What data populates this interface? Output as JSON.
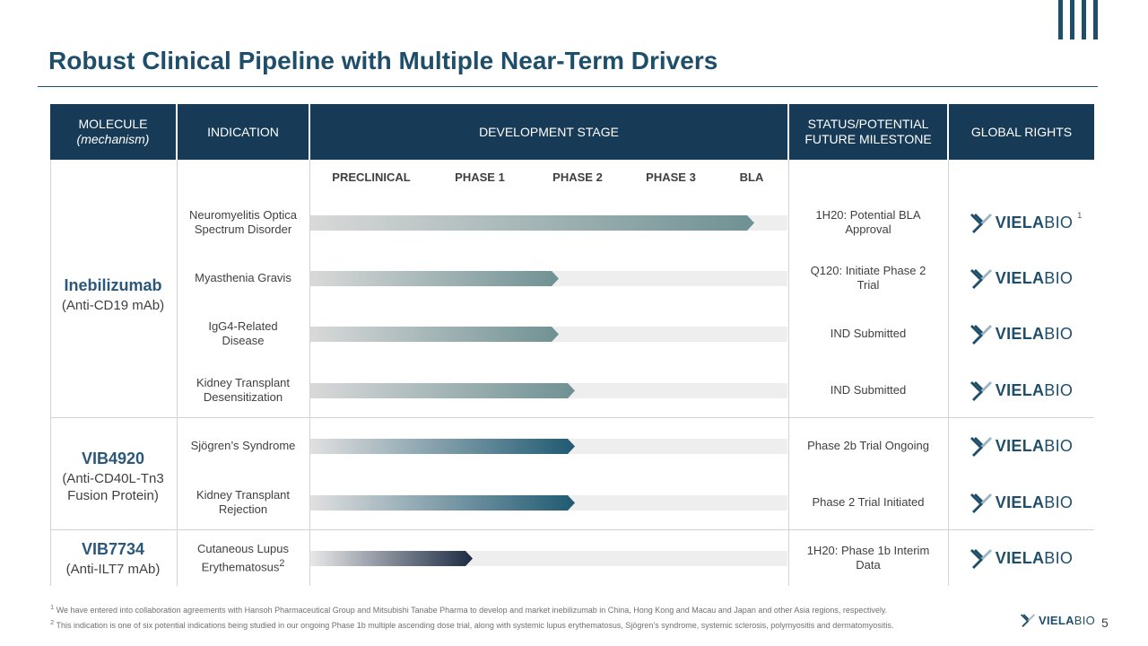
{
  "title": "Robust Clinical Pipeline with Multiple Near-Term Drivers",
  "headers": {
    "molecule": "MOLECULE",
    "mechanism": "(mechanism)",
    "indication": "INDICATION",
    "stage": "DEVELOPMENT STAGE",
    "status_1": "STATUS/POTENTIAL",
    "status_2": "FUTURE MILESTONE",
    "rights": "GLOBAL RIGHTS"
  },
  "stages": [
    "PRECLINICAL",
    "PHASE 1",
    "PHASE 2",
    "PHASE 3",
    "BLA"
  ],
  "molecules": [
    {
      "name": "Inebilizumab",
      "mech": "(Anti-CD19 mAb)"
    },
    {
      "name": "VIB4920",
      "mech_1": "(Anti-CD40L-Tn3",
      "mech_2": "Fusion Protein)"
    },
    {
      "name": "VIB7734",
      "mech": "(Anti-ILT7 mAb)"
    }
  ],
  "rows": [
    {
      "ind_1": "Neuromyelitis Optica",
      "ind_2": "Spectrum Disorder",
      "status_1": "1H20: Potential BLA",
      "status_2": "Approval",
      "progress": 0.93
    },
    {
      "ind_1": "Myasthenia Gravis",
      "ind_2": "",
      "status_1": "Q120: Initiate Phase 2",
      "status_2": "Trial",
      "progress": 0.52
    },
    {
      "ind_1": "IgG4-Related",
      "ind_2": "Disease",
      "status_1": "IND Submitted",
      "status_2": "",
      "progress": 0.52
    },
    {
      "ind_1": "Kidney Transplant",
      "ind_2": "Desensitization",
      "status_1": "IND Submitted",
      "status_2": "",
      "progress": 0.555
    },
    {
      "ind_1": "Sjögren’s Syndrome",
      "ind_2": "",
      "status_1": "Phase 2b Trial Ongoing",
      "status_2": "",
      "progress": 0.555
    },
    {
      "ind_1": "Kidney Transplant",
      "ind_2": "Rejection",
      "status_1": "Phase 2 Trial Initiated",
      "status_2": "",
      "progress": 0.555
    },
    {
      "ind_1": "Cutaneous Lupus",
      "ind_2": "Erythematosus",
      "ind_sup": "2",
      "status_1": "1H20: Phase 1b Interim",
      "status_2": "Data",
      "progress": 0.34
    }
  ],
  "logo": {
    "bold": "VIELA",
    "light": "BIO",
    "footnote_mark": "1"
  },
  "footnotes": [
    "We have entered into collaboration agreements with Hansoh Pharmaceutical Group and Mitsubishi Tanabe Pharma to develop and market inebilizumab in China, Hong Kong and Macau and Japan and other Asia regions, respectively.",
    "This indication is one of six potential indications being studied in our ongoing Phase 1b multiple ascending dose trial, along with systemic lupus erythematosus, Sjögren’s syndrome, systemic sclerosis, polymyositis and dermatomyositis."
  ],
  "footnote_marks": [
    "1",
    "2"
  ],
  "page_number": "5",
  "colors": {
    "header": "#173a56",
    "title": "#1f4e6b",
    "bar_teal": "#6f9193",
    "bar_blue": "#1f5a72",
    "bar_navy": "#1c2b44"
  }
}
